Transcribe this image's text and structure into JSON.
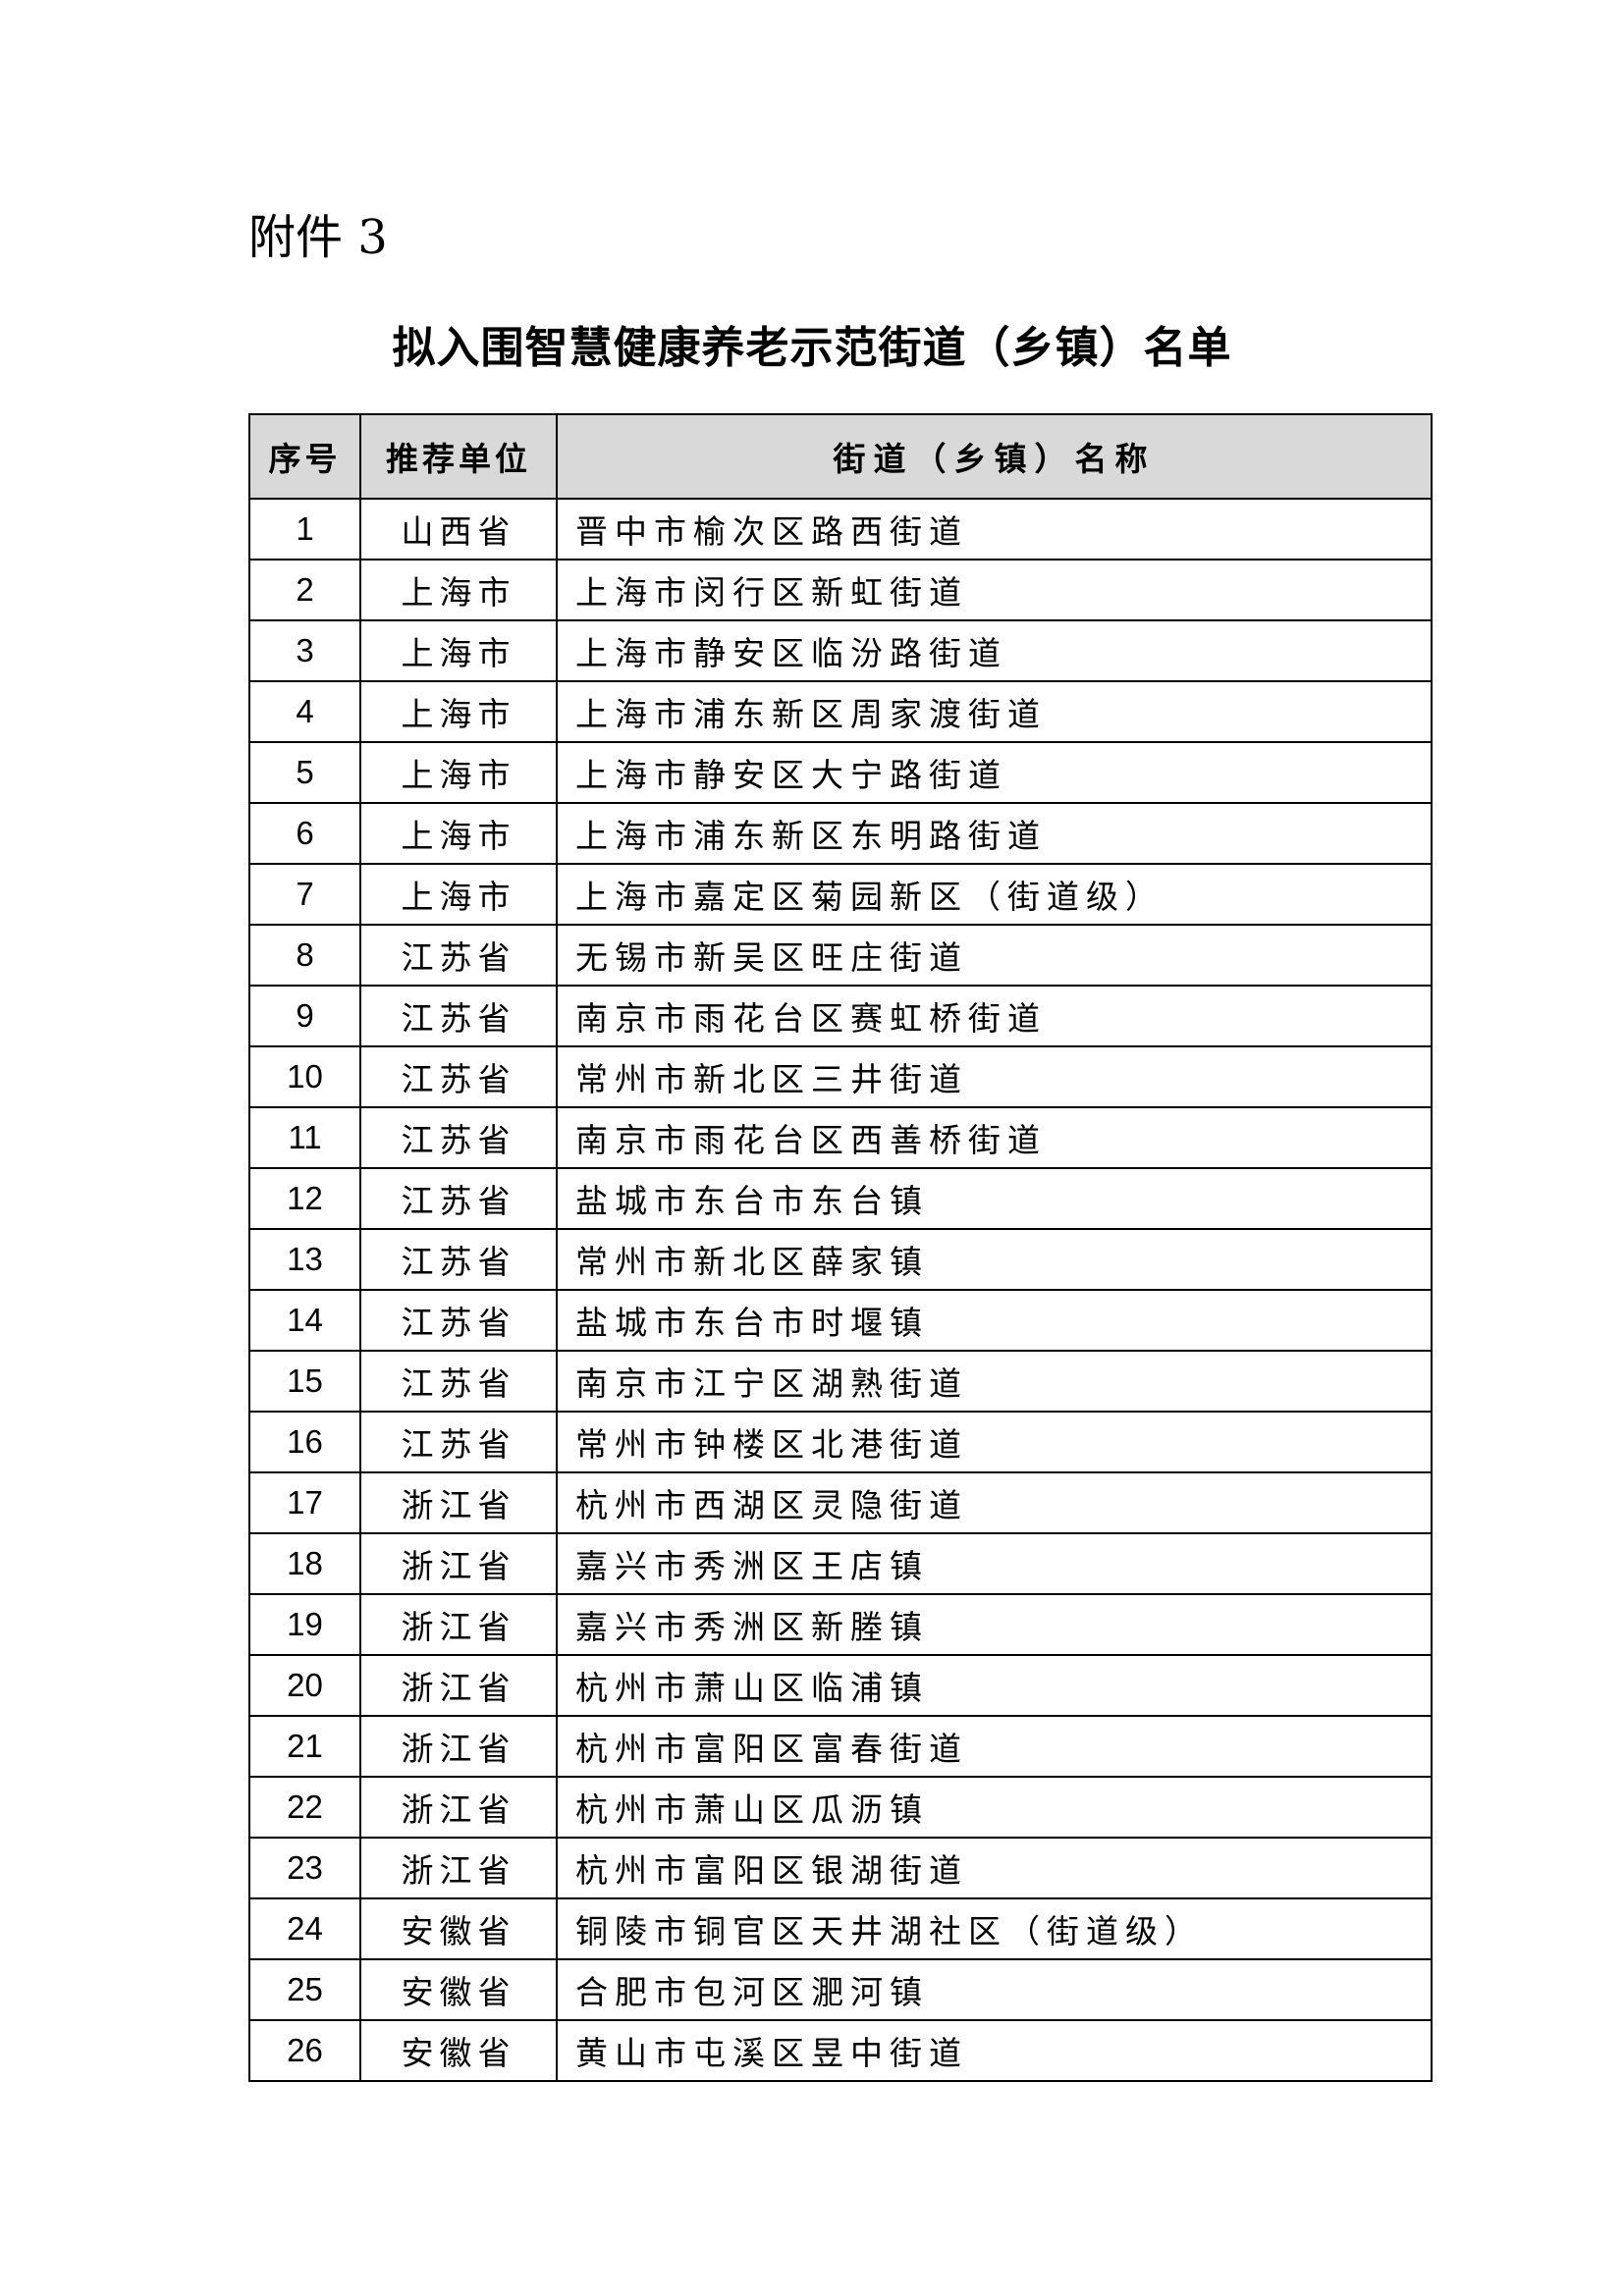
{
  "attachment_label": "附件 3",
  "title": "拟入围智慧健康养老示范街道（乡镇）名单",
  "table": {
    "headers": [
      "序号",
      "推荐单位",
      "街道（乡镇）名称"
    ],
    "rows": [
      [
        "1",
        "山西省",
        "晋中市榆次区路西街道"
      ],
      [
        "2",
        "上海市",
        "上海市闵行区新虹街道"
      ],
      [
        "3",
        "上海市",
        "上海市静安区临汾路街道"
      ],
      [
        "4",
        "上海市",
        "上海市浦东新区周家渡街道"
      ],
      [
        "5",
        "上海市",
        "上海市静安区大宁路街道"
      ],
      [
        "6",
        "上海市",
        "上海市浦东新区东明路街道"
      ],
      [
        "7",
        "上海市",
        "上海市嘉定区菊园新区（街道级）"
      ],
      [
        "8",
        "江苏省",
        "无锡市新吴区旺庄街道"
      ],
      [
        "9",
        "江苏省",
        "南京市雨花台区赛虹桥街道"
      ],
      [
        "10",
        "江苏省",
        "常州市新北区三井街道"
      ],
      [
        "11",
        "江苏省",
        "南京市雨花台区西善桥街道"
      ],
      [
        "12",
        "江苏省",
        "盐城市东台市东台镇"
      ],
      [
        "13",
        "江苏省",
        "常州市新北区薛家镇"
      ],
      [
        "14",
        "江苏省",
        "盐城市东台市时堰镇"
      ],
      [
        "15",
        "江苏省",
        "南京市江宁区湖熟街道"
      ],
      [
        "16",
        "江苏省",
        "常州市钟楼区北港街道"
      ],
      [
        "17",
        "浙江省",
        "杭州市西湖区灵隐街道"
      ],
      [
        "18",
        "浙江省",
        "嘉兴市秀洲区王店镇"
      ],
      [
        "19",
        "浙江省",
        "嘉兴市秀洲区新塍镇"
      ],
      [
        "20",
        "浙江省",
        "杭州市萧山区临浦镇"
      ],
      [
        "21",
        "浙江省",
        "杭州市富阳区富春街道"
      ],
      [
        "22",
        "浙江省",
        "杭州市萧山区瓜沥镇"
      ],
      [
        "23",
        "浙江省",
        "杭州市富阳区银湖街道"
      ],
      [
        "24",
        "安徽省",
        "铜陵市铜官区天井湖社区（街道级）"
      ],
      [
        "25",
        "安徽省",
        "合肥市包河区淝河镇"
      ],
      [
        "26",
        "安徽省",
        "黄山市屯溪区昱中街道"
      ]
    ]
  },
  "colors": {
    "header_bg": "#d9d9d9",
    "border": "#000000"
  }
}
